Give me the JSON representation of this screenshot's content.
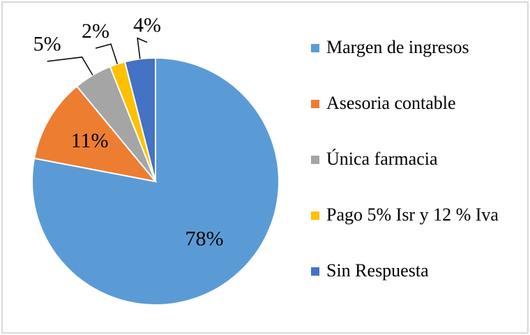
{
  "chart_data": {
    "type": "pie",
    "categories": [
      "Margen de ingresos",
      "Asesoria contable",
      "Única farmacia",
      "Pago 5% Isr y 12 % Iva",
      "Sin Respuesta"
    ],
    "values": [
      78,
      11,
      5,
      2,
      4
    ],
    "value_labels": [
      "78%",
      "11%",
      "5%",
      "2%",
      "4%"
    ],
    "colors": [
      "#5b9bd5",
      "#ed7d31",
      "#a5a5a5",
      "#ffc000",
      "#4472c4"
    ],
    "legend": "right"
  }
}
